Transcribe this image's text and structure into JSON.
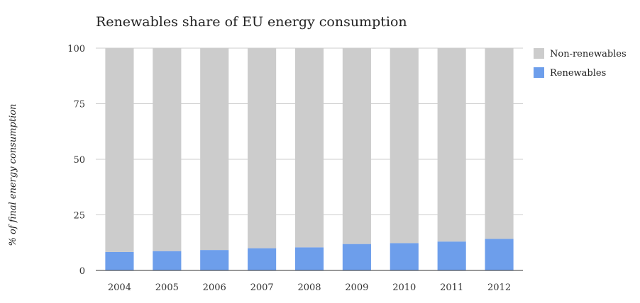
{
  "chart_data": {
    "type": "bar",
    "stacked": true,
    "title": "Renewables share of EU energy consumption",
    "xlabel": "",
    "ylabel": "% of final energy consumption",
    "categories": [
      "2004",
      "2005",
      "2006",
      "2007",
      "2008",
      "2009",
      "2010",
      "2011",
      "2012"
    ],
    "ylim": [
      0,
      100
    ],
    "yticks": [
      "0",
      "25",
      "50",
      "75",
      "100"
    ],
    "grid": true,
    "legend_position": "right",
    "series": [
      {
        "name": "Renewables",
        "color": "#6d9eeb",
        "values": [
          8.3,
          8.7,
          9.2,
          10.0,
          10.4,
          11.9,
          12.3,
          13.0,
          14.2
        ]
      },
      {
        "name": "Non-renewables",
        "color": "#cccccc",
        "values": [
          91.7,
          91.3,
          90.8,
          90.0,
          89.6,
          88.1,
          87.7,
          87.0,
          85.8
        ]
      }
    ]
  }
}
